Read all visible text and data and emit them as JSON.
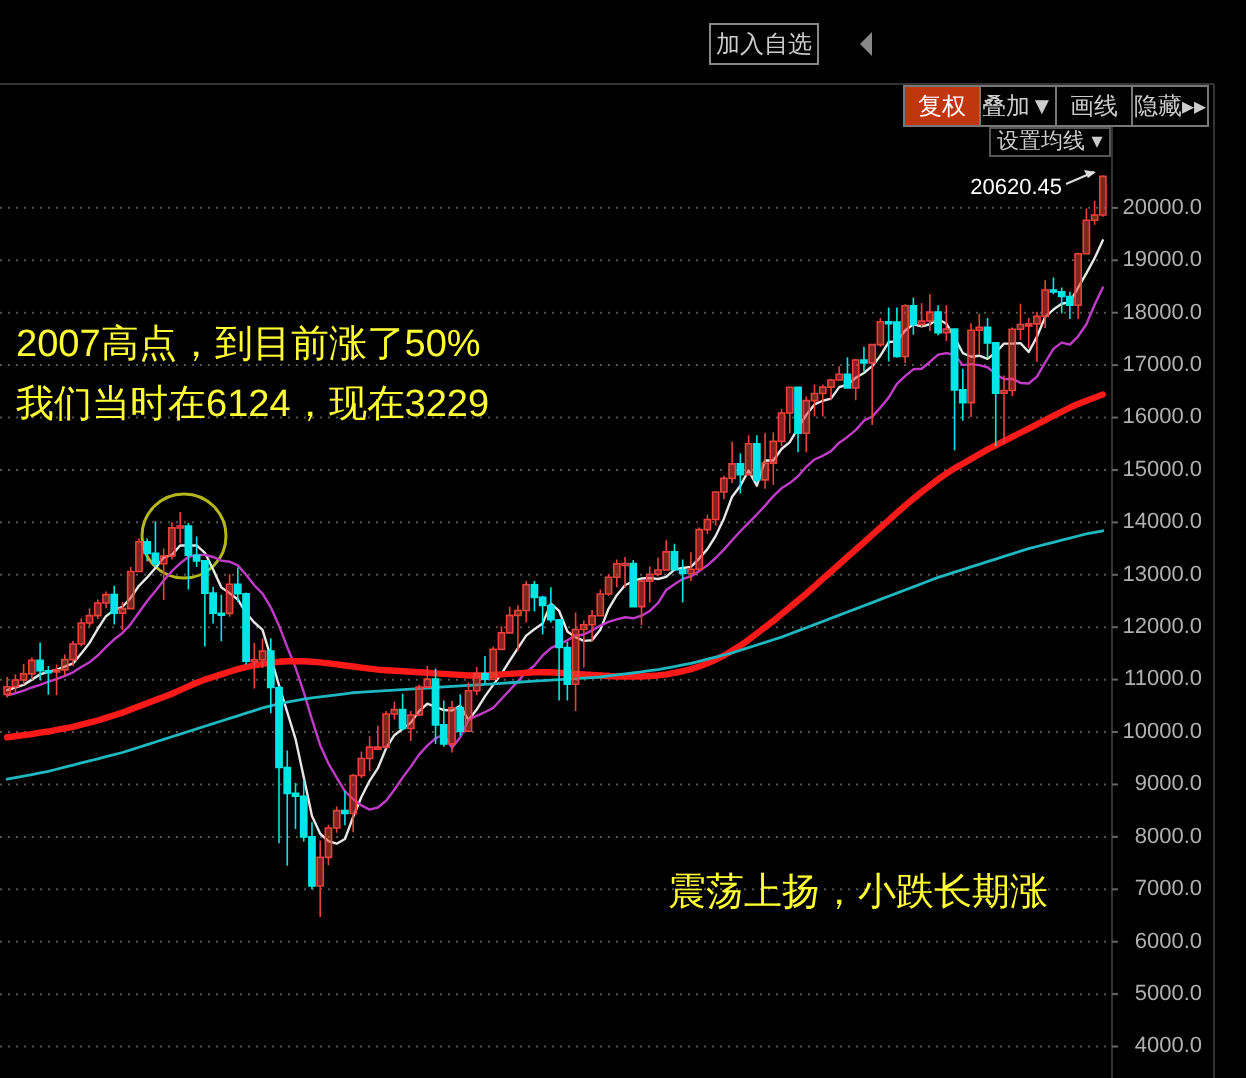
{
  "chart_data": {
    "type": "candlestick",
    "categories": [
      null,
      null,
      null,
      null,
      null,
      null,
      null,
      null,
      null,
      null,
      null,
      null,
      null,
      null,
      null,
      null,
      null,
      null,
      null,
      null,
      null,
      null,
      null,
      null,
      null,
      null,
      null,
      null,
      null,
      null,
      null,
      null,
      null,
      null,
      null,
      null,
      null,
      null,
      null,
      null,
      null,
      null,
      null,
      null,
      null,
      null,
      null,
      null,
      null,
      null,
      null,
      null,
      null,
      null,
      null,
      null,
      null,
      null,
      null,
      null,
      null,
      null,
      null,
      null,
      null,
      null,
      null,
      null,
      null,
      null,
      null,
      null,
      null,
      null,
      null,
      null,
      null,
      null,
      null,
      null,
      null,
      null,
      null,
      null,
      null,
      null,
      null,
      null,
      null,
      null,
      null,
      null,
      null,
      null,
      null,
      null,
      null,
      null,
      null,
      null,
      null,
      null,
      null,
      null,
      null,
      null,
      null,
      null,
      null,
      null,
      null,
      null,
      null,
      null,
      null,
      null,
      null,
      null,
      null,
      null,
      null,
      null,
      null,
      null,
      null,
      null,
      null,
      null,
      null,
      null,
      null,
      null,
      null,
      null
    ],
    "series": [
      {
        "type": "candlestick",
        "colors": [
          "#e8413c",
          "#e8413c",
          "#e8413c",
          "#e8413c",
          "#00e5e5",
          "#00e5e5",
          "#e8413c",
          "#e8413c",
          "#e8413c",
          "#e8413c",
          "#e8413c",
          "#e8413c",
          "#e8413c",
          "#00e5e5",
          "#e8413c",
          "#e8413c",
          "#e8413c",
          "#00e5e5",
          "#00e5e5",
          "#e8413c",
          "#e8413c",
          "#e8413c",
          "#00e5e5",
          "#00e5e5",
          "#00e5e5",
          "#00e5e5",
          "#00e5e5",
          "#e8413c",
          "#00e5e5",
          "#00e5e5",
          "#e8413c",
          "#e8413c",
          "#00e5e5",
          "#00e5e5",
          "#00e5e5",
          "#00e5e5",
          "#00e5e5",
          "#00e5e5",
          "#e8413c",
          "#e8413c",
          "#e8413c",
          "#00e5e5",
          "#e8413c",
          "#e8413c",
          "#e8413c",
          "#e8413c",
          "#e8413c",
          "#e8413c",
          "#00e5e5",
          "#e8413c",
          "#e8413c",
          "#e8413c",
          "#00e5e5",
          "#00e5e5",
          "#e8413c",
          "#00e5e5",
          "#e8413c",
          "#e8413c",
          "#00e5e5",
          "#e8413c",
          "#e8413c",
          "#e8413c",
          "#e8413c",
          "#e8413c",
          "#00e5e5",
          "#00e5e5",
          "#00e5e5",
          "#00e5e5",
          "#00e5e5",
          "#e8413c",
          "#e8413c",
          "#e8413c",
          "#e8413c",
          "#e8413c",
          "#e8413c",
          "#e8413c",
          "#00e5e5",
          "#e8413c",
          "#e8413c",
          "#e8413c",
          "#e8413c",
          "#00e5e5",
          "#00e5e5",
          "#e8413c",
          "#e8413c",
          "#e8413c",
          "#e8413c",
          "#e8413c",
          "#e8413c",
          "#00e5e5",
          "#e8413c",
          "#00e5e5",
          "#e8413c",
          "#e8413c",
          "#e8413c",
          "#e8413c",
          "#00e5e5",
          "#e8413c",
          "#e8413c",
          "#e8413c",
          "#e8413c",
          "#e8413c",
          "#00e5e5",
          "#e8413c",
          "#00e5e5",
          "#e8413c",
          "#e8413c",
          "#00e5e5",
          "#00e5e5",
          "#e8413c",
          "#00e5e5",
          "#e8413c",
          "#e8413c",
          "#00e5e5",
          "#e8413c",
          "#00e5e5",
          "#00e5e5",
          "#e8413c",
          "#e8413c",
          "#00e5e5",
          "#00e5e5",
          "#e8413c",
          "#e8413c",
          "#e8413c",
          "#e8413c",
          "#e8413c",
          "#e8413c",
          "#00e5e5",
          "#00e5e5",
          "#00e5e5",
          "#e8413c",
          "#e8413c",
          "#e8413c",
          "#e8413c"
        ],
        "ohlc": [
          [
            10718,
            11050,
            10660,
            10865
          ],
          [
            10865,
            11100,
            10750,
            10993
          ],
          [
            10993,
            11300,
            10900,
            11109
          ],
          [
            11109,
            11420,
            11000,
            11367
          ],
          [
            11367,
            11710,
            10990,
            11168
          ],
          [
            11168,
            11260,
            10710,
            11150
          ],
          [
            11150,
            11290,
            10700,
            11186
          ],
          [
            11186,
            11480,
            11080,
            11381
          ],
          [
            11381,
            11740,
            11260,
            11679
          ],
          [
            11679,
            12170,
            11640,
            12081
          ],
          [
            12081,
            12360,
            12010,
            12221
          ],
          [
            12221,
            12530,
            12150,
            12463
          ],
          [
            12463,
            12680,
            12360,
            12622
          ],
          [
            12622,
            12790,
            12050,
            12269
          ],
          [
            12269,
            12480,
            11940,
            12354
          ],
          [
            12354,
            13150,
            12350,
            13063
          ],
          [
            13063,
            13690,
            13050,
            13628
          ],
          [
            13628,
            13690,
            13260,
            13409
          ],
          [
            13409,
            14020,
            13150,
            13212
          ],
          [
            13212,
            13500,
            12520,
            13358
          ],
          [
            13358,
            14000,
            13290,
            13896
          ],
          [
            13896,
            14200,
            13600,
            13930
          ],
          [
            13930,
            13990,
            12720,
            13372
          ],
          [
            13372,
            13730,
            13150,
            13265
          ],
          [
            13265,
            13280,
            11630,
            12650
          ],
          [
            12650,
            12770,
            12070,
            12266
          ],
          [
            12266,
            12620,
            11730,
            12263
          ],
          [
            12263,
            13010,
            12200,
            12820
          ],
          [
            12820,
            13140,
            12480,
            12638
          ],
          [
            12638,
            12660,
            11290,
            11350
          ],
          [
            11350,
            11700,
            10830,
            11378
          ],
          [
            11378,
            11790,
            11220,
            11544
          ],
          [
            11544,
            11790,
            10360,
            10851
          ],
          [
            10851,
            10880,
            7880,
            9325
          ],
          [
            9325,
            9650,
            7450,
            8829
          ],
          [
            8829,
            9030,
            8150,
            8776
          ],
          [
            8776,
            9090,
            7910,
            8001
          ],
          [
            8001,
            8280,
            7000,
            7063
          ],
          [
            7063,
            7930,
            6470,
            7609
          ],
          [
            7609,
            8230,
            7460,
            8168
          ],
          [
            8168,
            8580,
            8080,
            8500
          ],
          [
            8500,
            8880,
            8220,
            8447
          ],
          [
            8447,
            9200,
            8090,
            9172
          ],
          [
            9172,
            9630,
            9120,
            9496
          ],
          [
            9496,
            9920,
            9250,
            9712
          ],
          [
            9712,
            10120,
            9670,
            9713
          ],
          [
            9713,
            10400,
            9680,
            10345
          ],
          [
            10345,
            10580,
            10240,
            10428
          ],
          [
            10428,
            10730,
            10030,
            10067
          ],
          [
            10067,
            10400,
            9830,
            10325
          ],
          [
            10325,
            10900,
            10300,
            10857
          ],
          [
            10857,
            11260,
            10840,
            11009
          ],
          [
            11009,
            11210,
            9770,
            10137
          ],
          [
            10137,
            10600,
            9720,
            9774
          ],
          [
            9774,
            10590,
            9610,
            10466
          ],
          [
            10466,
            10720,
            9930,
            10015
          ],
          [
            10015,
            10950,
            10010,
            10788
          ],
          [
            10788,
            11240,
            10700,
            11118
          ],
          [
            11118,
            11450,
            10930,
            11006
          ],
          [
            11006,
            11630,
            11000,
            11578
          ],
          [
            11578,
            12020,
            11570,
            11892
          ],
          [
            11892,
            12390,
            11890,
            12226
          ],
          [
            12226,
            12420,
            11550,
            12320
          ],
          [
            12320,
            12880,
            12090,
            12811
          ],
          [
            12811,
            12880,
            12300,
            12570
          ],
          [
            12570,
            12600,
            11860,
            12414
          ],
          [
            12414,
            12760,
            12090,
            12143
          ],
          [
            12143,
            12150,
            10600,
            11614
          ],
          [
            11614,
            11720,
            10600,
            10913
          ],
          [
            10913,
            12280,
            10400,
            11955
          ],
          [
            11955,
            12130,
            11230,
            12046
          ],
          [
            12046,
            12330,
            11730,
            12218
          ],
          [
            12218,
            12720,
            12210,
            12633
          ],
          [
            12633,
            13010,
            12600,
            12952
          ],
          [
            12952,
            13290,
            12760,
            13212
          ],
          [
            13212,
            13340,
            12750,
            13214
          ],
          [
            13214,
            13280,
            12390,
            12393
          ],
          [
            12393,
            12900,
            12040,
            12880
          ],
          [
            12880,
            13160,
            12470,
            13009
          ],
          [
            13009,
            13330,
            12970,
            13091
          ],
          [
            13091,
            13660,
            13080,
            13437
          ],
          [
            13437,
            13590,
            13080,
            13096
          ],
          [
            13096,
            13290,
            12470,
            13026
          ],
          [
            13026,
            13430,
            12880,
            13104
          ],
          [
            13104,
            13900,
            13100,
            13861
          ],
          [
            13861,
            14150,
            13780,
            14054
          ],
          [
            14054,
            14590,
            13940,
            14579
          ],
          [
            14579,
            14890,
            14440,
            14840
          ],
          [
            14840,
            15540,
            14750,
            15116
          ],
          [
            15116,
            15320,
            14550,
            14910
          ],
          [
            14910,
            15660,
            14900,
            15500
          ],
          [
            15500,
            15660,
            14760,
            14810
          ],
          [
            14810,
            15710,
            14640,
            15130
          ],
          [
            15130,
            15720,
            14720,
            15546
          ],
          [
            15546,
            16170,
            15450,
            16086
          ],
          [
            16086,
            16590,
            15700,
            16577
          ],
          [
            16577,
            16590,
            15340,
            15699
          ],
          [
            15699,
            16400,
            15340,
            16322
          ],
          [
            16322,
            16630,
            16020,
            16458
          ],
          [
            16458,
            16630,
            16020,
            16581
          ],
          [
            16581,
            16740,
            16330,
            16717
          ],
          [
            16717,
            16980,
            16700,
            16827
          ],
          [
            16827,
            17150,
            16560,
            16563
          ],
          [
            16563,
            17120,
            16330,
            17098
          ],
          [
            17098,
            17350,
            16880,
            17043
          ],
          [
            17043,
            17410,
            15860,
            17391
          ],
          [
            17391,
            17900,
            17350,
            17828
          ],
          [
            17828,
            18100,
            17070,
            17823
          ],
          [
            17823,
            18100,
            17140,
            17165
          ],
          [
            17165,
            18160,
            17040,
            18133
          ],
          [
            18133,
            18290,
            17580,
            17776
          ],
          [
            17776,
            18180,
            17710,
            17841
          ],
          [
            17841,
            18350,
            17650,
            18011
          ],
          [
            18011,
            18140,
            17570,
            17620
          ],
          [
            17620,
            18140,
            17460,
            17690
          ],
          [
            17690,
            17700,
            15370,
            16528
          ],
          [
            16528,
            16930,
            15940,
            16285
          ],
          [
            16285,
            17800,
            16010,
            17664
          ],
          [
            17664,
            17980,
            17210,
            17720
          ],
          [
            17720,
            17900,
            17140,
            17425
          ],
          [
            17425,
            17430,
            15450,
            16466
          ],
          [
            16466,
            16800,
            15500,
            16517
          ],
          [
            16517,
            17720,
            16410,
            17685
          ],
          [
            17685,
            18170,
            17480,
            17774
          ],
          [
            17774,
            17900,
            17330,
            17787
          ],
          [
            17787,
            18020,
            17060,
            17930
          ],
          [
            17930,
            18620,
            17710,
            18432
          ],
          [
            18432,
            18670,
            18350,
            18401
          ],
          [
            18401,
            18480,
            17990,
            18308
          ],
          [
            18308,
            18400,
            17880,
            18142
          ],
          [
            18142,
            19150,
            17880,
            19124
          ],
          [
            19124,
            19990,
            19110,
            19763
          ],
          [
            19763,
            20130,
            19680,
            19864
          ],
          [
            19864,
            20620.45,
            19830,
            20600
          ]
        ]
      },
      {
        "type": "line",
        "color": "#e6e6e6",
        "values": [
          10800,
          10850,
          10900,
          11000,
          11100,
          11150,
          11190,
          11250,
          11310,
          11500,
          11700,
          11970,
          12210,
          12330,
          12390,
          12560,
          12790,
          12950,
          13130,
          13330,
          13380,
          13560,
          13560,
          13560,
          13420,
          13100,
          12760,
          12650,
          12530,
          12270,
          12090,
          11950,
          11430,
          10890,
          10380,
          9870,
          9140,
          8400,
          8060,
          7920,
          7870,
          7960,
          8380,
          8760,
          9070,
          9310,
          9690,
          9940,
          10060,
          10180,
          10400,
          10540,
          10480,
          10420,
          10410,
          10500,
          10230,
          10430,
          10680,
          10900,
          11110,
          11360,
          11600,
          11840,
          11960,
          12070,
          12450,
          12310,
          11920,
          11810,
          11740,
          11750,
          11950,
          12350,
          12610,
          12800,
          12880,
          12930,
          12940,
          12920,
          12960,
          13100,
          13130,
          13150,
          13310,
          13490,
          13740,
          14070,
          14490,
          14700,
          14990,
          14700,
          15180,
          15180,
          15400,
          15530,
          15800,
          16050,
          16250,
          16320,
          16360,
          16580,
          16630,
          16760,
          16850,
          16980,
          17180,
          17440,
          17450,
          17660,
          17780,
          17740,
          17780,
          17880,
          17790,
          17530,
          17230,
          17160,
          17180,
          17120,
          17240,
          17410,
          17410,
          17420,
          17250,
          17540,
          17920,
          18060,
          18170,
          18200,
          18480,
          18750,
          19040,
          19380
        ]
      },
      {
        "type": "line",
        "color": "#c03cc8",
        "values": [
          10700,
          10740,
          10790,
          10850,
          10900,
          10960,
          11010,
          11070,
          11140,
          11240,
          11330,
          11460,
          11620,
          11770,
          11890,
          12060,
          12280,
          12500,
          12690,
          12890,
          13070,
          13220,
          13340,
          13380,
          13380,
          13340,
          13270,
          13250,
          13180,
          13000,
          12800,
          12640,
          12380,
          12030,
          11620,
          11230,
          10760,
          10240,
          9750,
          9400,
          9130,
          8870,
          8720,
          8600,
          8520,
          8560,
          8690,
          8900,
          9130,
          9340,
          9570,
          9740,
          9880,
          9950,
          9700,
          9900,
          10230,
          10310,
          10380,
          10460,
          10630,
          10800,
          10970,
          11140,
          11270,
          11460,
          11600,
          11680,
          11750,
          11840,
          11860,
          11940,
          12030,
          12100,
          12150,
          12190,
          12170,
          12220,
          12310,
          12460,
          12710,
          12820,
          12920,
          12970,
          13070,
          13180,
          13320,
          13480,
          13660,
          13830,
          13990,
          14150,
          14320,
          14500,
          14650,
          14750,
          14880,
          15060,
          15200,
          15270,
          15360,
          15520,
          15630,
          15760,
          15940,
          16020,
          16190,
          16380,
          16640,
          16790,
          16920,
          16930,
          17060,
          17200,
          17230,
          17200,
          17000,
          17020,
          17000,
          16960,
          16830,
          16730,
          16740,
          16660,
          16650,
          16780,
          17050,
          17310,
          17430,
          17390,
          17550,
          17780,
          18150,
          18480
        ]
      },
      {
        "type": "line",
        "color": "#ff1a1a",
        "values": [
          9900,
          9920,
          9940,
          9960,
          9990,
          10010,
          10040,
          10070,
          10100,
          10140,
          10180,
          10220,
          10270,
          10320,
          10370,
          10430,
          10490,
          10550,
          10610,
          10670,
          10730,
          10800,
          10870,
          10940,
          11000,
          11050,
          11100,
          11150,
          11200,
          11240,
          11270,
          11300,
          11320,
          11340,
          11350,
          11350,
          11350,
          11340,
          11330,
          11310,
          11290,
          11270,
          11250,
          11230,
          11210,
          11190,
          11180,
          11170,
          11160,
          11150,
          11140,
          11130,
          11120,
          11110,
          11100,
          11090,
          11080,
          11080,
          11080,
          11090,
          11100,
          11110,
          11120,
          11130,
          11140,
          11140,
          11140,
          11130,
          11120,
          11110,
          11100,
          11090,
          11080,
          11070,
          11060,
          11060,
          11060,
          11060,
          11070,
          11080,
          11100,
          11130,
          11160,
          11200,
          11250,
          11310,
          11380,
          11460,
          11550,
          11650,
          11760,
          11880,
          12000,
          12120,
          12250,
          12380,
          12510,
          12640,
          12780,
          12920,
          13060,
          13200,
          13340,
          13480,
          13620,
          13760,
          13900,
          14040,
          14180,
          14320,
          14450,
          14580,
          14700,
          14820,
          14930,
          15030,
          15120,
          15210,
          15300,
          15390,
          15470,
          15550,
          15630,
          15710,
          15790,
          15870,
          15950,
          16030,
          16110,
          16190,
          16260,
          16320,
          16380,
          16440
        ]
      },
      {
        "type": "line",
        "color": "#1fb8c0",
        "values": [
          9100,
          9130,
          9160,
          9190,
          9220,
          9250,
          9290,
          9330,
          9370,
          9410,
          9450,
          9490,
          9530,
          9570,
          9610,
          9660,
          9710,
          9760,
          9810,
          9860,
          9910,
          9960,
          10010,
          10060,
          10110,
          10160,
          10210,
          10260,
          10310,
          10360,
          10410,
          10460,
          10500,
          10540,
          10570,
          10600,
          10630,
          10650,
          10670,
          10690,
          10710,
          10730,
          10750,
          10760,
          10770,
          10780,
          10790,
          10800,
          10810,
          10820,
          10830,
          10840,
          10850,
          10860,
          10870,
          10880,
          10890,
          10900,
          10910,
          10920,
          10930,
          10940,
          10950,
          10960,
          10970,
          10980,
          10990,
          11000,
          11010,
          11020,
          11030,
          11040,
          11050,
          11070,
          11090,
          11110,
          11130,
          11150,
          11170,
          11190,
          11220,
          11250,
          11280,
          11310,
          11350,
          11390,
          11430,
          11470,
          11510,
          11560,
          11610,
          11660,
          11710,
          11760,
          11810,
          11870,
          11930,
          11990,
          12050,
          12110,
          12170,
          12230,
          12290,
          12350,
          12410,
          12470,
          12530,
          12590,
          12650,
          12710,
          12770,
          12830,
          12890,
          12950,
          13000,
          13050,
          13100,
          13150,
          13200,
          13250,
          13300,
          13350,
          13400,
          13450,
          13500,
          13540,
          13580,
          13620,
          13660,
          13700,
          13740,
          13780,
          13810,
          13840
        ]
      }
    ],
    "ylim": [
      3400,
      21600
    ],
    "yticks": [
      {
        "value": 4000,
        "label": "4000.0"
      },
      {
        "value": 5000,
        "label": "5000.0"
      },
      {
        "value": 6000,
        "label": "6000.0"
      },
      {
        "value": 7000,
        "label": "7000.0"
      },
      {
        "value": 8000,
        "label": "8000.0"
      },
      {
        "value": 9000,
        "label": "9000.0"
      },
      {
        "value": 10000,
        "label": "10000.0"
      },
      {
        "value": 11000,
        "label": "11000.0"
      },
      {
        "value": 12000,
        "label": "12000.0"
      },
      {
        "value": 13000,
        "label": "13000.0"
      },
      {
        "value": 14000,
        "label": "14000.0"
      },
      {
        "value": 15000,
        "label": "15000.0"
      },
      {
        "value": 16000,
        "label": "16000.0"
      },
      {
        "value": 17000,
        "label": "17000.0"
      },
      {
        "value": 18000,
        "label": "18000.0"
      },
      {
        "value": 19000,
        "label": "19000.0"
      },
      {
        "value": 20000,
        "label": "20000.0"
      }
    ],
    "grid": "y",
    "tick_labels": "y",
    "annotations": [
      "2007高点，到目前涨了50%",
      "我们当时在6124，现在3229",
      "震荡上扬，小跌长期涨",
      "20620.45",
      "加入自选",
      "复权",
      "叠加▼",
      "画线",
      "隐藏▸▸",
      "设置均线 ▾"
    ]
  }
}
